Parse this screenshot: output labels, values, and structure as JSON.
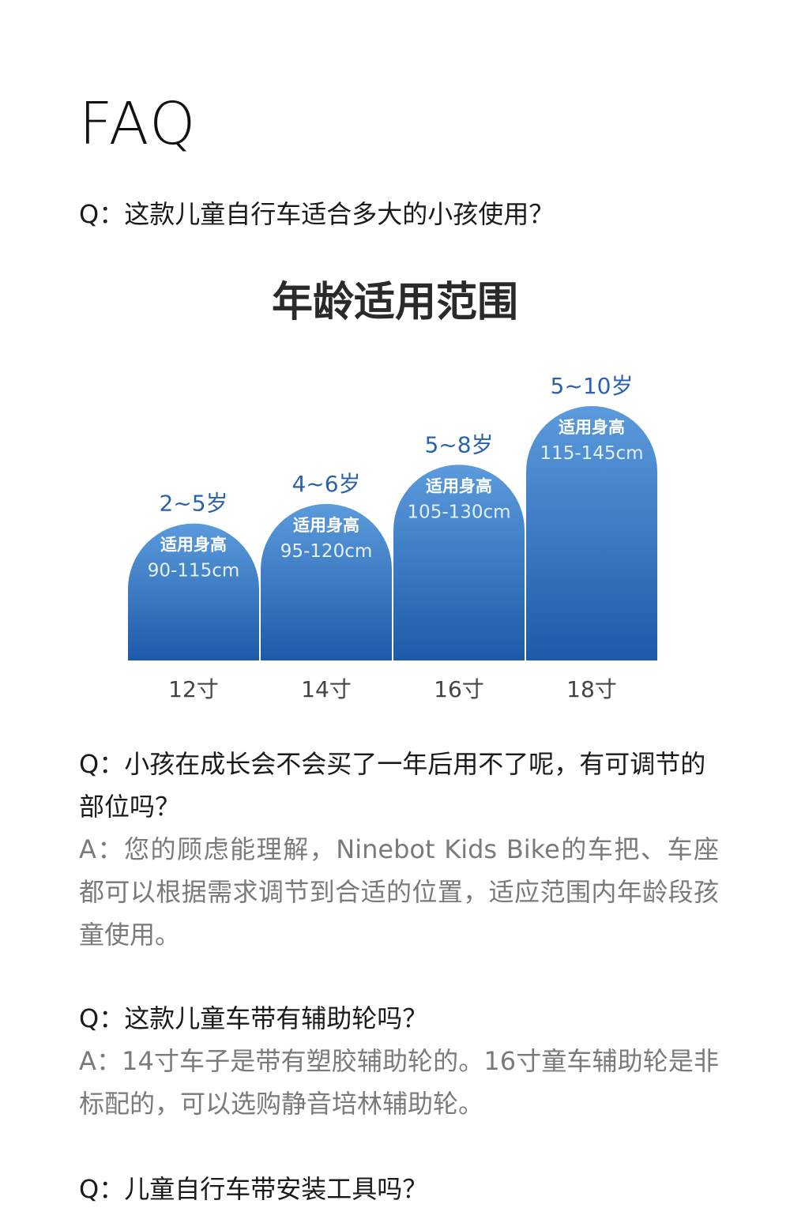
{
  "faq": {
    "title": "FAQ"
  },
  "q1": {
    "question": "Q：这款儿童自行车适合多大的小孩使用？"
  },
  "chart_data": {
    "type": "bar",
    "title": "年龄适用范围",
    "categories": [
      "12寸",
      "14寸",
      "16寸",
      "18寸"
    ],
    "age_labels": [
      "2~5岁",
      "4~6岁",
      "5~8岁",
      "5~10岁"
    ],
    "bar_header": "适用身高",
    "height_labels": [
      "90-115cm",
      "95-120cm",
      "105-130cm",
      "115-145cm"
    ],
    "values": [
      115,
      120,
      130,
      145
    ],
    "ylim": [
      80,
      145
    ],
    "colors": {
      "bar_top": "#5b9bdc",
      "bar_bottom": "#1e5aa8",
      "label": "#2a62ad",
      "tick": "#444444"
    }
  },
  "q2": {
    "question": "Q：小孩在成长会不会买了一年后用不了呢，有可调节的部位吗？",
    "answer": "A：您的顾虑能理解，Ninebot Kids Bike的车把、车座都可以根据需求调节到合适的位置，适应范围内年龄段孩童使用。"
  },
  "q3": {
    "question": "Q：这款儿童车带有辅助轮吗？",
    "answer": "A：14寸车子是带有塑胶辅助轮的。16寸童车辅助轮是非标配的，可以选购静音培林辅助轮。"
  },
  "q4": {
    "question": "Q：儿童自行车带安装工具吗？"
  }
}
